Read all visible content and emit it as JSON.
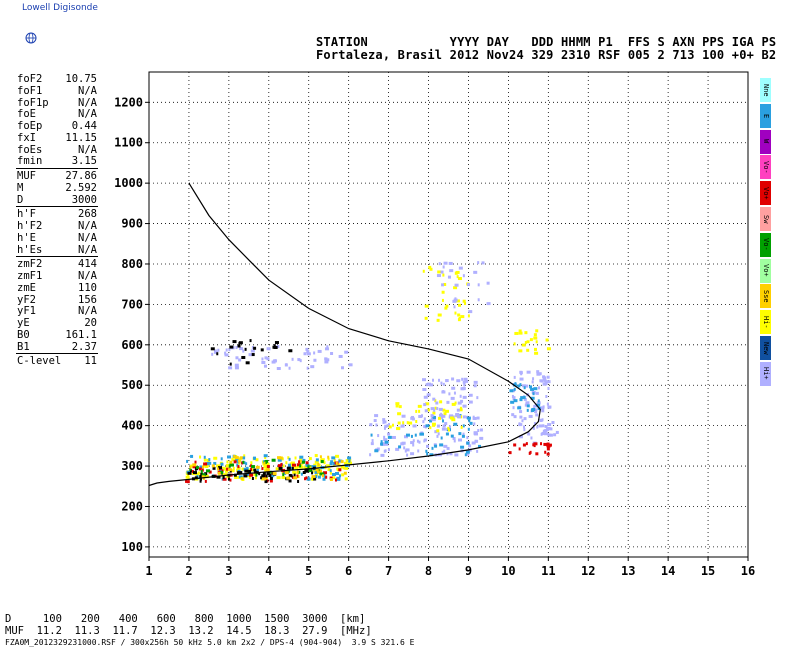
{
  "app": {
    "logo_text": "Lowell Digisonde"
  },
  "header": {
    "line1": "STATION           YYYY DAY   DDD HHMM P1  FFS S AXN PPS IGA PS",
    "line2": "Fortaleza, Brasil 2012 Nov24 329 2310 RSF 005 2 713 100 +0+ B2"
  },
  "params": [
    {
      "group": [
        {
          "label": "foF2",
          "value": "10.75"
        },
        {
          "label": "foF1",
          "value": "N/A"
        },
        {
          "label": "foF1p",
          "value": "N/A"
        },
        {
          "label": "foE",
          "value": "N/A"
        },
        {
          "label": "foEp",
          "value": "0.44"
        },
        {
          "label": "fxI",
          "value": "11.15"
        },
        {
          "label": "foEs",
          "value": "N/A"
        },
        {
          "label": "fmin",
          "value": "3.15"
        }
      ]
    },
    {
      "group": [
        {
          "label": "MUF",
          "value": "27.86"
        },
        {
          "label": "M",
          "value": "2.592"
        },
        {
          "label": "D",
          "value": "3000"
        }
      ]
    },
    {
      "group": [
        {
          "label": "h'F",
          "value": "268"
        },
        {
          "label": "h'F2",
          "value": "N/A"
        },
        {
          "label": "h'E",
          "value": "N/A"
        },
        {
          "label": "h'Es",
          "value": "N/A"
        }
      ]
    },
    {
      "group": [
        {
          "label": "zmF2",
          "value": "414"
        },
        {
          "label": "zmF1",
          "value": "N/A"
        },
        {
          "label": "zmE",
          "value": "110"
        },
        {
          "label": "yF2",
          "value": "156"
        },
        {
          "label": "yF1",
          "value": "N/A"
        },
        {
          "label": "yE",
          "value": "20"
        },
        {
          "label": "B0",
          "value": "161.1"
        },
        {
          "label": "B1",
          "value": "2.37"
        }
      ]
    },
    {
      "group": [
        {
          "label": "C-level",
          "value": "11"
        }
      ]
    }
  ],
  "legend": [
    {
      "label": "Nne",
      "color": "#9fffff"
    },
    {
      "label": "E",
      "color": "#2aa0e0"
    },
    {
      "label": "W",
      "color": "#a000c0"
    },
    {
      "label": "Vo-",
      "color": "#ff40c0"
    },
    {
      "label": "Vo+",
      "color": "#e00000"
    },
    {
      "label": "Sw",
      "color": "#ffa0a0"
    },
    {
      "label": "Vo-",
      "color": "#00a000"
    },
    {
      "label": "Vo+",
      "color": "#a0ffa0"
    },
    {
      "label": "Sse",
      "color": "#ffd000"
    },
    {
      "label": "Hi-",
      "color": "#ffff00"
    },
    {
      "label": "New",
      "color": "#1050a0"
    },
    {
      "label": "Hi+",
      "color": "#b0b0ff"
    }
  ],
  "muf_table": {
    "row1": "D     100   200   400   600   800  1000  1500  3000  [km]",
    "row2": "MUF  11.2  11.3  11.7  12.3  13.2  14.5  18.3  27.9  [MHz]"
  },
  "footer": "FZA0M_2012329231000.RSF / 300x256h 50 kHz 5.0 km 2x2 / DPS-4 (904-904)  3.9 S 321.6 E",
  "chart_data": {
    "type": "scatter",
    "title": "",
    "xlabel": "",
    "ylabel": "",
    "xlim": [
      1,
      16
    ],
    "ylim": [
      75,
      1275
    ],
    "x_ticks": [
      1,
      2,
      3,
      4,
      5,
      6,
      7,
      8,
      9,
      10,
      11,
      12,
      13,
      14,
      15,
      16
    ],
    "y_ticks": [
      100,
      200,
      300,
      400,
      500,
      600,
      700,
      800,
      900,
      1000,
      1100,
      1200
    ],
    "grid": true,
    "traces": [
      {
        "name": "",
        "kind": "curve",
        "color": "#000000",
        "points": [
          [
            2.0,
            1000
          ],
          [
            2.5,
            920
          ],
          [
            3.0,
            860
          ],
          [
            3.5,
            810
          ],
          [
            4.0,
            760
          ],
          [
            5.0,
            690
          ],
          [
            6.0,
            640
          ],
          [
            7.0,
            610
          ],
          [
            8.0,
            590
          ],
          [
            9.0,
            565
          ],
          [
            10.0,
            510
          ],
          [
            10.5,
            475
          ],
          [
            10.8,
            440
          ],
          [
            10.75,
            410
          ],
          [
            10.5,
            385
          ],
          [
            10.0,
            360
          ],
          [
            9.0,
            340
          ],
          [
            8.0,
            325
          ],
          [
            7.0,
            313
          ],
          [
            6.0,
            303
          ],
          [
            5.0,
            293
          ],
          [
            4.0,
            286
          ],
          [
            3.0,
            278
          ],
          [
            2.0,
            267
          ],
          [
            1.5,
            262
          ],
          [
            1.2,
            258
          ],
          [
            1.0,
            252
          ]
        ]
      }
    ],
    "echo_clusters": [
      {
        "color": "#ffff00",
        "x": [
          1.9,
          6.0
        ],
        "y": [
          270,
          330
        ],
        "n": 150
      },
      {
        "color": "#2aa0e0",
        "x": [
          1.9,
          6.0
        ],
        "y": [
          270,
          330
        ],
        "n": 80
      },
      {
        "color": "#e00000",
        "x": [
          1.9,
          6.0
        ],
        "y": [
          265,
          320
        ],
        "n": 50
      },
      {
        "color": "#000000",
        "x": [
          1.9,
          5.2
        ],
        "y": [
          265,
          300
        ],
        "n": 60
      },
      {
        "color": "#00a000",
        "x": [
          2.0,
          5.5
        ],
        "y": [
          270,
          320
        ],
        "n": 30
      },
      {
        "color": "#ffd000",
        "x": [
          2.0,
          6.0
        ],
        "y": [
          270,
          330
        ],
        "n": 40
      },
      {
        "color": "#b0b0ff",
        "x": [
          2.5,
          6.0
        ],
        "y": [
          545,
          600
        ],
        "n": 60
      },
      {
        "color": "#000000",
        "x": [
          2.5,
          4.5
        ],
        "y": [
          555,
          615
        ],
        "n": 20
      },
      {
        "color": "#b0b0ff",
        "x": [
          6.5,
          9.3
        ],
        "y": [
          330,
          430
        ],
        "n": 110
      },
      {
        "color": "#2aa0e0",
        "x": [
          6.5,
          9.3
        ],
        "y": [
          330,
          430
        ],
        "n": 40
      },
      {
        "color": "#ffff00",
        "x": [
          7.0,
          9.0
        ],
        "y": [
          390,
          470
        ],
        "n": 40
      },
      {
        "color": "#b0b0ff",
        "x": [
          7.8,
          9.2
        ],
        "y": [
          420,
          520
        ],
        "n": 60
      },
      {
        "color": "#ffff00",
        "x": [
          7.8,
          9.0
        ],
        "y": [
          660,
          800
        ],
        "n": 30
      },
      {
        "color": "#b0b0ff",
        "x": [
          8.2,
          9.5
        ],
        "y": [
          680,
          810
        ],
        "n": 25
      },
      {
        "color": "#b0b0ff",
        "x": [
          10.0,
          11.0
        ],
        "y": [
          360,
          540
        ],
        "n": 80
      },
      {
        "color": "#2aa0e0",
        "x": [
          10.0,
          10.8
        ],
        "y": [
          440,
          510
        ],
        "n": 25
      },
      {
        "color": "#e00000",
        "x": [
          10.0,
          11.0
        ],
        "y": [
          330,
          360
        ],
        "n": 20
      },
      {
        "color": "#ffff00",
        "x": [
          10.0,
          11.0
        ],
        "y": [
          580,
          640
        ],
        "n": 20
      },
      {
        "color": "#b0b0ff",
        "x": [
          10.6,
          11.2
        ],
        "y": [
          380,
          420
        ],
        "n": 20
      }
    ]
  }
}
